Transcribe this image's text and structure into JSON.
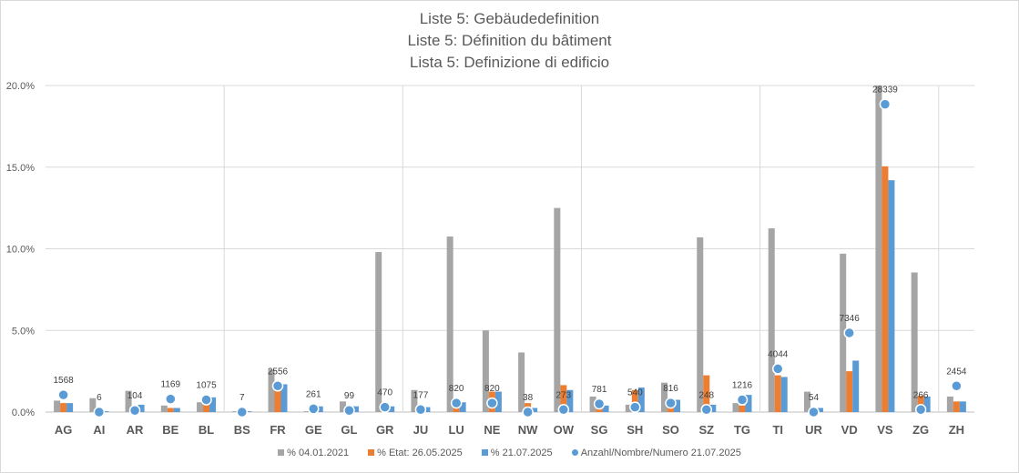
{
  "chart_data": {
    "type": "bar",
    "title_lines": [
      "Liste 5: Gebäudedefinition",
      "Liste 5: Définition du bâtiment",
      "Lista 5: Definizione di edificio"
    ],
    "categories": [
      "AG",
      "AI",
      "AR",
      "BE",
      "BL",
      "BS",
      "FR",
      "GE",
      "GL",
      "GR",
      "JU",
      "LU",
      "NE",
      "NW",
      "OW",
      "SG",
      "SH",
      "SO",
      "SZ",
      "TG",
      "TI",
      "UR",
      "VD",
      "VS",
      "ZG",
      "ZH"
    ],
    "y_ticks": [
      "0.0%",
      "5.0%",
      "10.0%",
      "15.0%",
      "20.0%"
    ],
    "ylim": [
      0,
      20
    ],
    "series": [
      {
        "name": "% 04.01.2021",
        "color": "#a5a5a5",
        "kind": "bar",
        "values": [
          0.7,
          0.85,
          1.3,
          0.4,
          0.6,
          0.05,
          2.6,
          0.05,
          0.65,
          9.8,
          1.35,
          10.75,
          5.0,
          3.65,
          12.5,
          0.95,
          0.45,
          1.8,
          10.7,
          0.55,
          11.25,
          1.25,
          9.7,
          20.0,
          8.55,
          0.95
        ]
      },
      {
        "name": "% Etat: 26.05.2025",
        "color": "#ed7d31",
        "kind": "bar",
        "values": [
          0.55,
          0.0,
          0.3,
          0.25,
          0.5,
          0.0,
          1.5,
          0.0,
          0.05,
          0.05,
          0.1,
          0.25,
          1.25,
          0.55,
          1.65,
          0.3,
          1.35,
          0.3,
          2.25,
          0.4,
          2.25,
          0.05,
          2.5,
          15.05,
          1.0,
          0.65
        ]
      },
      {
        "name": "% 21.07.2025",
        "color": "#5b9bd5",
        "kind": "bar",
        "values": [
          0.55,
          0.05,
          0.45,
          0.25,
          0.9,
          0.05,
          1.7,
          0.35,
          0.35,
          0.35,
          0.3,
          0.6,
          1.25,
          0.25,
          1.35,
          0.4,
          1.5,
          0.75,
          0.45,
          1.05,
          2.15,
          0.25,
          3.15,
          14.2,
          0.95,
          0.65
        ]
      },
      {
        "name": "Anzahl/Nombre/Numero 21.07.2025",
        "color": "#5b9bd5",
        "kind": "marker",
        "values": [
          1.05,
          0.0,
          0.1,
          0.8,
          0.75,
          0.0,
          1.6,
          0.2,
          0.1,
          0.3,
          0.15,
          0.55,
          0.55,
          0.0,
          0.15,
          0.5,
          0.3,
          0.55,
          0.15,
          0.75,
          2.65,
          0.0,
          4.85,
          18.85,
          0.15,
          1.6
        ],
        "labels": [
          "1568",
          "6",
          "104",
          "1169",
          "1075",
          "7",
          "2556",
          "261",
          "99",
          "470",
          "177",
          "820",
          "820",
          "38",
          "273",
          "781",
          "540",
          "816",
          "248",
          "1216",
          "4044",
          "54",
          "7346",
          "28339",
          "266",
          "2454"
        ]
      }
    ]
  }
}
